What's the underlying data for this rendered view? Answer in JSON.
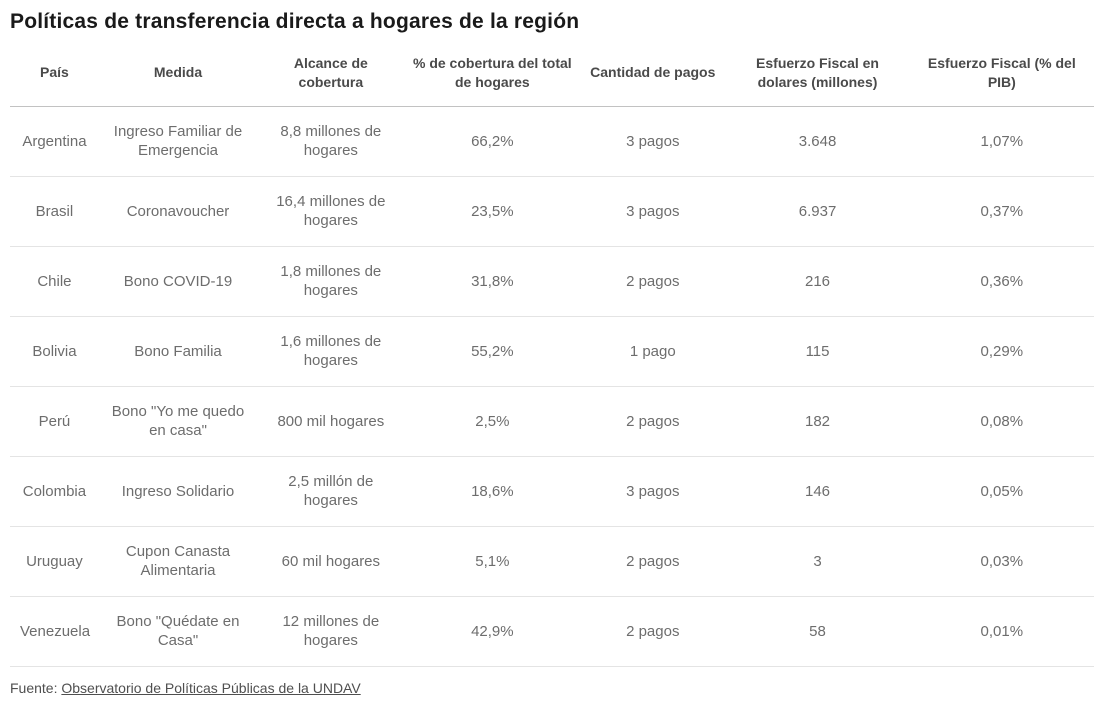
{
  "title": "Políticas de transferencia directa a hogares de la región",
  "chart_data": {
    "type": "table",
    "title": "Políticas de transferencia directa a hogares de la región",
    "columns": [
      "País",
      "Medida",
      "Alcance de cobertura",
      "% de cobertura del total de hogares",
      "Cantidad de pagos",
      "Esfuerzo Fiscal en dolares (millones)",
      "Esfuerzo Fiscal (% del PIB)"
    ],
    "rows": [
      [
        "Argentina",
        "Ingreso Familiar de Emergencia",
        "8,8 millones de hogares",
        "66,2%",
        "3 pagos",
        "3.648",
        "1,07%"
      ],
      [
        "Brasil",
        "Coronavoucher",
        "16,4 millones de hogares",
        "23,5%",
        "3 pagos",
        "6.937",
        "0,37%"
      ],
      [
        "Chile",
        "Bono COVID-19",
        "1,8 millones de hogares",
        "31,8%",
        "2 pagos",
        "216",
        "0,36%"
      ],
      [
        "Bolivia",
        "Bono Familia",
        "1,6 millones de hogares",
        "55,2%",
        "1 pago",
        "115",
        "0,29%"
      ],
      [
        "Perú",
        "Bono \"Yo me quedo en casa\"",
        "800 mil hogares",
        "2,5%",
        "2 pagos",
        "182",
        "0,08%"
      ],
      [
        "Colombia",
        "Ingreso Solidario",
        "2,5 millón de hogares",
        "18,6%",
        "3 pagos",
        "146",
        "0,05%"
      ],
      [
        "Uruguay",
        "Cupon Canasta Alimentaria",
        "60 mil hogares",
        "5,1%",
        "2 pagos",
        "3",
        "0,03%"
      ],
      [
        "Venezuela",
        "Bono \"Quédate en Casa\"",
        "12 millones de hogares",
        "42,9%",
        "2 pagos",
        "58",
        "0,01%"
      ]
    ]
  },
  "footer": {
    "source_prefix": "Fuente: ",
    "source_link": "Observatorio de Políticas Públicas de la UNDAV"
  }
}
